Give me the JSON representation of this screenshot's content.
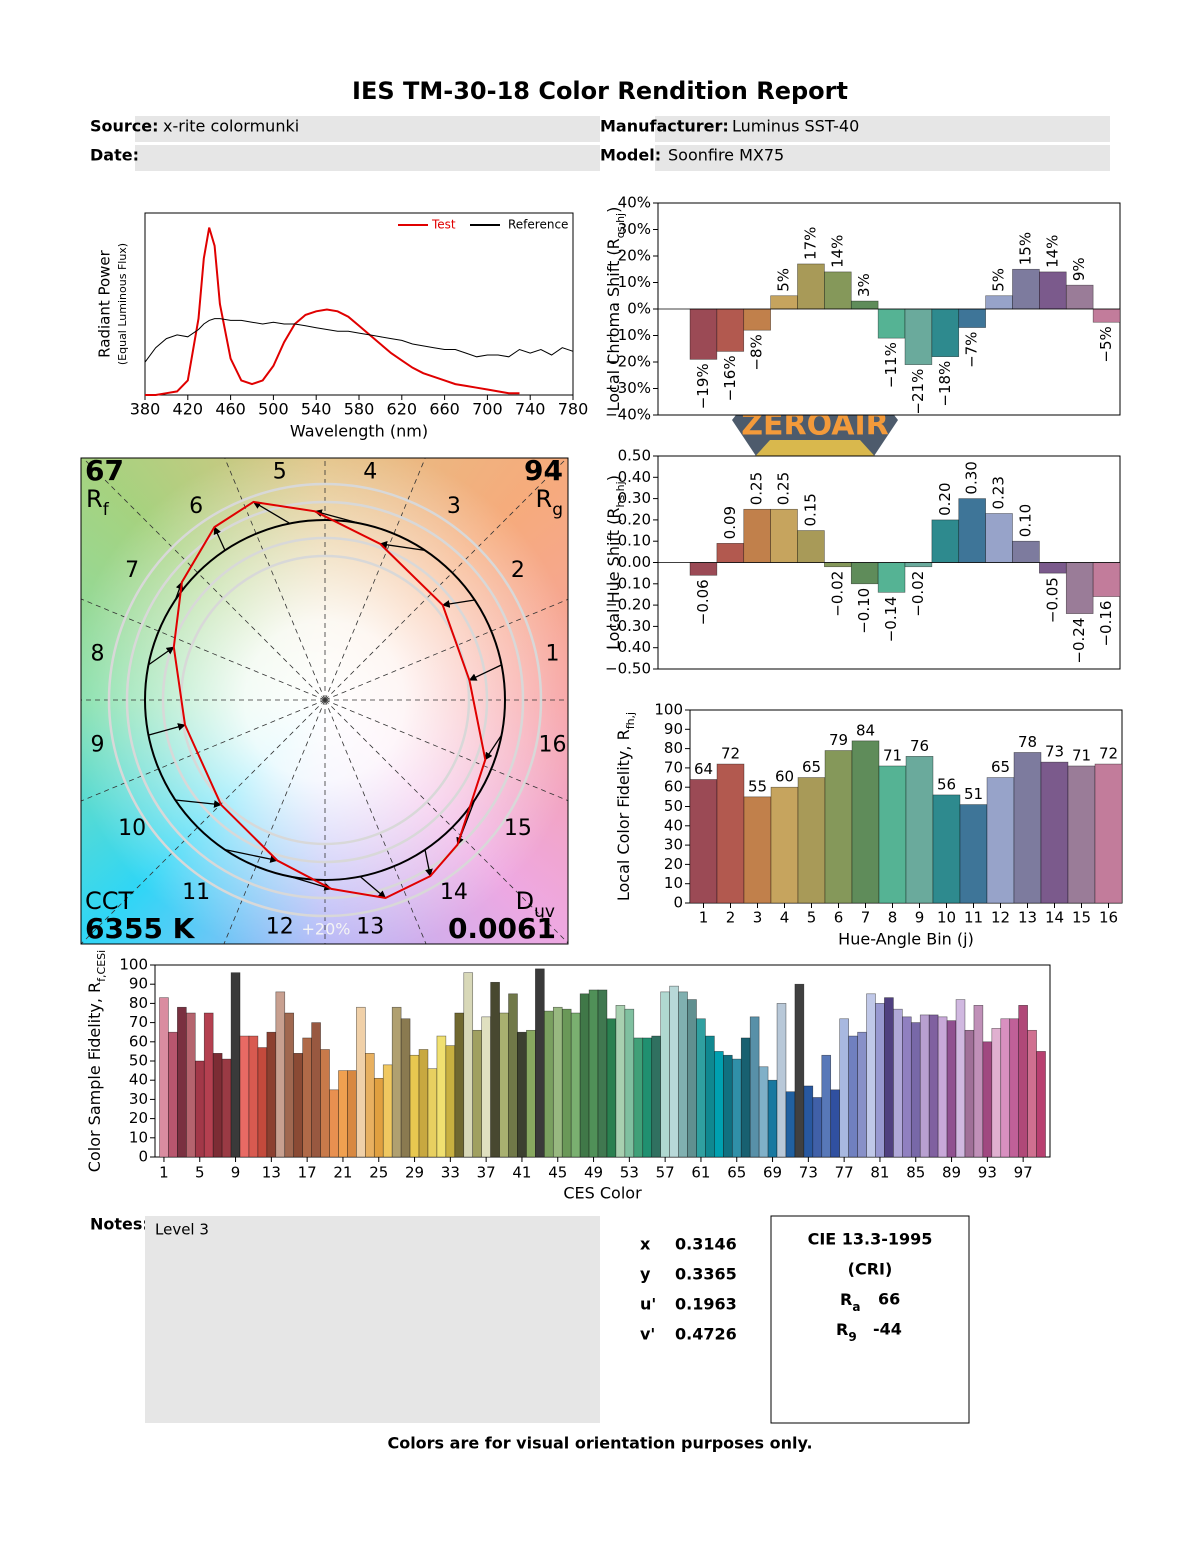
{
  "header": {
    "title": "IES TM-30-18 Color Rendition Report",
    "source_label": "Source:",
    "source": "x-rite colormunki",
    "date_label": "Date:",
    "manufacturer_label": "Manufacturer:",
    "manufacturer": "Luminus SST-40",
    "model_label": "Model:",
    "model": "Soonfire MX75"
  },
  "chart_data": [
    {
      "type": "line",
      "x": [
        380,
        390,
        400,
        410,
        420,
        430,
        435,
        440,
        445,
        450,
        460,
        470,
        480,
        490,
        500,
        510,
        520,
        530,
        540,
        550,
        560,
        570,
        580,
        590,
        600,
        610,
        620,
        630,
        640,
        650,
        660,
        670,
        680,
        690,
        700,
        710,
        720,
        730,
        740,
        750,
        760,
        770,
        780
      ],
      "series": [
        {
          "name": "Test",
          "color": "#e00000",
          "values": [
            0,
            0,
            0.01,
            0.02,
            0.08,
            0.42,
            0.75,
            0.92,
            0.82,
            0.5,
            0.2,
            0.08,
            0.06,
            0.08,
            0.16,
            0.29,
            0.39,
            0.44,
            0.46,
            0.47,
            0.46,
            0.43,
            0.38,
            0.33,
            0.28,
            0.23,
            0.19,
            0.15,
            0.12,
            0.1,
            0.08,
            0.06,
            0.05,
            0.04,
            0.03,
            0.02,
            0.01,
            0.01,
            null,
            null,
            null,
            null,
            null
          ]
        },
        {
          "name": "Reference",
          "color": "#000000",
          "values": [
            0.18,
            0.26,
            0.31,
            0.33,
            0.32,
            0.36,
            0.39,
            0.41,
            0.42,
            0.42,
            0.41,
            0.41,
            0.4,
            0.39,
            0.4,
            0.39,
            0.39,
            0.38,
            0.37,
            0.36,
            0.35,
            0.35,
            0.34,
            0.33,
            0.32,
            0.31,
            0.3,
            0.28,
            0.27,
            0.26,
            0.25,
            0.25,
            0.23,
            0.21,
            0.22,
            0.22,
            0.21,
            0.25,
            0.23,
            0.25,
            0.22,
            0.26,
            0.24
          ]
        }
      ],
      "xlim": [
        380,
        780
      ],
      "xticks": [
        380,
        420,
        460,
        500,
        540,
        580,
        620,
        660,
        700,
        740,
        780
      ],
      "ylim": [
        0,
        1
      ],
      "xlabel": "Wavelength (nm)",
      "ylabel": "Radiant Power",
      "ylabel_note": "(Equal Luminous Flux)",
      "legend": "upper right"
    },
    {
      "type": "vector",
      "categories": [
        "1",
        "2",
        "3",
        "4",
        "5",
        "6",
        "7",
        "8",
        "9",
        "10",
        "11",
        "12",
        "13",
        "14",
        "15",
        "16"
      ],
      "rf": 67,
      "rf_label": {
        "main": "R",
        "sub": "f"
      },
      "rg": 94,
      "rg_label": {
        "main": "R",
        "sub": "g"
      },
      "cct_label": "CCT",
      "cct": "6355 K",
      "duv_label": {
        "main": "D",
        "sub": "uv"
      },
      "duv": 0.0061,
      "ring_label": "+20%"
    },
    {
      "type": "bar",
      "values": [
        -19,
        -16,
        -8,
        5,
        17,
        14,
        3,
        -11,
        -21,
        -18,
        -7,
        5,
        15,
        14,
        9,
        -5
      ],
      "value_labels": [
        "−19%",
        "−16%",
        "−8%",
        "5%",
        "17%",
        "14%",
        "3%",
        "−11%",
        "−21%",
        "−18%",
        "−7%",
        "5%",
        "15%",
        "14%",
        "9%",
        "−5%"
      ],
      "colors": [
        "#9b4a55",
        "#b2594f",
        "#c1804b",
        "#c6a45e",
        "#a89a58",
        "#85985a",
        "#5f8c5a",
        "#55b394",
        "#6aaa9c",
        "#2e8a8e",
        "#3e7598",
        "#97a3c9",
        "#7d7b9e",
        "#7b5a8c",
        "#9a7c98",
        "#c27c9b"
      ],
      "ylim": [
        -40,
        40
      ],
      "yticks": [
        {
          "value": -40,
          "label": "−40%"
        },
        {
          "value": -30,
          "label": "−30%"
        },
        {
          "value": -20,
          "label": "−20%"
        },
        {
          "value": -10,
          "label": "−10%"
        },
        {
          "value": 0,
          "label": "0%"
        },
        {
          "value": 10,
          "label": "10%"
        },
        {
          "value": 20,
          "label": "20%"
        },
        {
          "value": 30,
          "label": "30%"
        },
        {
          "value": 40,
          "label": "40%"
        }
      ],
      "ylabel": {
        "main": "Local Chroma Shift (R",
        "sub": "cs,hj",
        "end": ")"
      }
    },
    {
      "type": "bar",
      "values": [
        -0.06,
        0.09,
        0.25,
        0.25,
        0.15,
        -0.02,
        -0.1,
        -0.14,
        -0.02,
        0.2,
        0.3,
        0.23,
        0.1,
        -0.05,
        -0.24,
        -0.16
      ],
      "value_labels": [
        "−0.06",
        "0.09",
        "0.25",
        "0.25",
        "0.15",
        "−0.02",
        "−0.10",
        "−0.14",
        "−0.02",
        "0.20",
        "0.30",
        "0.23",
        "0.10",
        "−0.05",
        "−0.24",
        "−0.16"
      ],
      "colors": [
        "#9b4a55",
        "#b2594f",
        "#c1804b",
        "#c6a45e",
        "#a89a58",
        "#85985a",
        "#5f8c5a",
        "#55b394",
        "#6aaa9c",
        "#2e8a8e",
        "#3e7598",
        "#97a3c9",
        "#7d7b9e",
        "#7b5a8c",
        "#9a7c98",
        "#c27c9b"
      ],
      "ylim": [
        -0.5,
        0.5
      ],
      "yticks": [
        {
          "value": -0.5,
          "label": "−0.50"
        },
        {
          "value": -0.4,
          "label": "−0.40"
        },
        {
          "value": -0.3,
          "label": "−0.30"
        },
        {
          "value": -0.2,
          "label": "−0.20"
        },
        {
          "value": -0.1,
          "label": "−0.10"
        },
        {
          "value": 0,
          "label": "0.00"
        },
        {
          "value": 0.1,
          "label": "0.10"
        },
        {
          "value": 0.2,
          "label": "0.20"
        },
        {
          "value": 0.3,
          "label": "0.30"
        },
        {
          "value": 0.4,
          "label": "0.40"
        },
        {
          "value": 0.5,
          "label": "0.50"
        }
      ],
      "ylabel": {
        "main": "Local Hue Shift (R",
        "sub": "hs,hj",
        "end": ")"
      }
    },
    {
      "type": "bar",
      "categories": [
        "1",
        "2",
        "3",
        "4",
        "5",
        "6",
        "7",
        "8",
        "9",
        "10",
        "11",
        "12",
        "13",
        "14",
        "15",
        "16"
      ],
      "values": [
        64,
        72,
        55,
        60,
        65,
        79,
        84,
        71,
        76,
        56,
        51,
        65,
        78,
        73,
        71,
        72
      ],
      "colors": [
        "#9b4a55",
        "#b2594f",
        "#c1804b",
        "#c6a45e",
        "#a89a58",
        "#85985a",
        "#5f8c5a",
        "#55b394",
        "#6aaa9c",
        "#2e8a8e",
        "#3e7598",
        "#97a3c9",
        "#7d7b9e",
        "#7b5a8c",
        "#9a7c98",
        "#c27c9b"
      ],
      "ylim": [
        0,
        100
      ],
      "yticks": [
        0,
        10,
        20,
        30,
        40,
        50,
        60,
        70,
        80,
        90,
        100
      ],
      "xlabel": "Hue-Angle Bin (j)",
      "ylabel": {
        "main": "Local Color Fidelity, R",
        "sub": "fh,j"
      }
    },
    {
      "type": "bar",
      "values": [
        83,
        65,
        78,
        75,
        50,
        75,
        54,
        51,
        96,
        63,
        63,
        57,
        65,
        86,
        75,
        54,
        62,
        70,
        56,
        35,
        45,
        45,
        78,
        54,
        41,
        48,
        78,
        72,
        53,
        56,
        46,
        63,
        58,
        75,
        96,
        66,
        73,
        91,
        75,
        85,
        65,
        66,
        98,
        76,
        78,
        77,
        75,
        85,
        87,
        87,
        72,
        79,
        77,
        62,
        62,
        63,
        86,
        89,
        86,
        82,
        72,
        63,
        55,
        53,
        51,
        62,
        73,
        47,
        40,
        80,
        34,
        90,
        37,
        31,
        53,
        35,
        72,
        63,
        65,
        85,
        80,
        83,
        77,
        73,
        70,
        74,
        74,
        73,
        71,
        82,
        66,
        79,
        60,
        67,
        72,
        72,
        79,
        66,
        55
      ],
      "colors": [
        "#d98ca0",
        "#b8566e",
        "#7a3040",
        "#b5646e",
        "#a23848",
        "#b44050",
        "#7c2c34",
        "#9a3a44",
        "#3a3a3a",
        "#e86a64",
        "#d85a50",
        "#c44a3c",
        "#8c4030",
        "#c8a090",
        "#a06850",
        "#8a4a34",
        "#b06a48",
        "#985840",
        "#c87a4a",
        "#e89050",
        "#f0a050",
        "#d88840",
        "#f0d0a8",
        "#e8b060",
        "#e0a040",
        "#f0c860",
        "#b0a070",
        "#8a7a50",
        "#e8c850",
        "#c8a840",
        "#e8d060",
        "#f0e070",
        "#c8b040",
        "#706830",
        "#d8d8b8",
        "#a0a060",
        "#e0e0c0",
        "#484830",
        "#a8b070",
        "#707848",
        "#3c4030",
        "#88a860",
        "#3a3a3a",
        "#7aa060",
        "#98b880",
        "#6a9858",
        "#7ab070",
        "#407848",
        "#509058",
        "#407850",
        "#2a8050",
        "#a8d0b0",
        "#80c0a0",
        "#40a078",
        "#209070",
        "#307060",
        "#b0d8d0",
        "#b8d8d8",
        "#80b0b0",
        "#609090",
        "#30a0a0",
        "#108890",
        "#00a0b0",
        "#107080",
        "#3090a8",
        "#186070",
        "#5890a8",
        "#80b0c8",
        "#1878a0",
        "#b8c8d8",
        "#2060a0",
        "#404040",
        "#2858a0",
        "#4060a8",
        "#5878b8",
        "#3050a0",
        "#a8b8e0",
        "#7080c0",
        "#8890c8",
        "#c0c8e8",
        "#9898d0",
        "#504080",
        "#b0a8d8",
        "#9080c0",
        "#7868a8",
        "#b8a0d0",
        "#8060a0",
        "#c8a8d8",
        "#905090",
        "#d0b8e0",
        "#a07098",
        "#c090b8",
        "#a04880",
        "#e0b0d0",
        "#d890c0",
        "#c06098",
        "#b04878",
        "#d07090",
        "#b84070"
      ],
      "xlim": [
        0,
        100
      ],
      "xticks": [
        1,
        5,
        9,
        13,
        17,
        21,
        25,
        29,
        33,
        37,
        41,
        45,
        49,
        53,
        57,
        61,
        65,
        69,
        73,
        77,
        81,
        85,
        89,
        93,
        97
      ],
      "ylim": [
        0,
        100
      ],
      "yticks": [
        0,
        10,
        20,
        30,
        40,
        50,
        60,
        70,
        80,
        90,
        100
      ],
      "xlabel": "CES Color",
      "ylabel": {
        "main": "Color Sample Fidelity, R",
        "sub": "f,CESi"
      }
    }
  ],
  "notes": {
    "label": "Notes:",
    "text": "Level 3"
  },
  "chromaticity": {
    "rows": [
      {
        "label": "x",
        "value": 0.3146
      },
      {
        "label": "y",
        "value": 0.3365
      },
      {
        "label": "u'",
        "value": 0.1963
      },
      {
        "label": "v'",
        "value": 0.4726
      }
    ]
  },
  "cri": {
    "title": "CIE 13.3-1995",
    "subtitle": "(CRI)",
    "ra": {
      "main": "R",
      "sub": "a",
      "value": 66
    },
    "r9": {
      "main": "R",
      "sub": "9",
      "value": -44
    }
  },
  "footer": "Colors are for visual orientation purposes only.",
  "watermark": "ZEROAIR"
}
